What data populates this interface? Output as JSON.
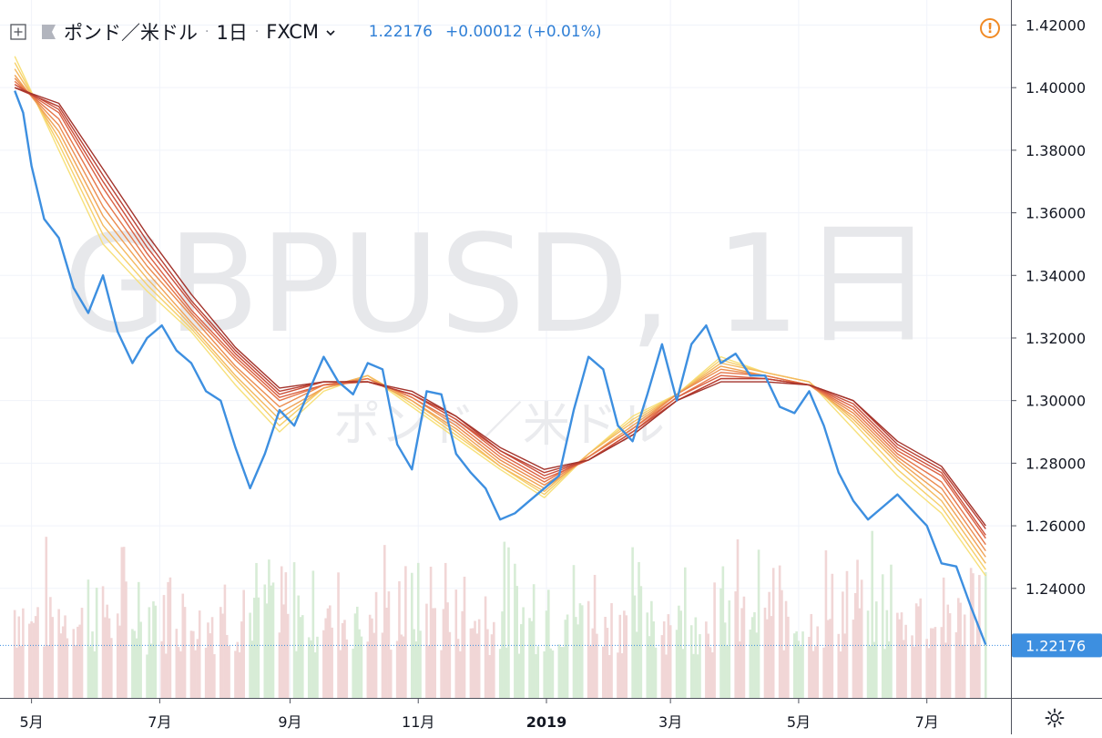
{
  "header": {
    "symbol_title": "ポンド／米ドル",
    "interval": "1日",
    "exchange": "FXCM",
    "last_price": "1.22176",
    "change": "+0.00012 (+0.01%)",
    "add_icon": "plus-square-icon",
    "flag_icon": "flag-icon",
    "dropdown_icon": "chevron-down-icon",
    "warning_icon": "warning-icon",
    "warning_glyph": "!",
    "settings_icon": "gear-icon"
  },
  "watermark": {
    "ticker": "GBPUSD, 1日",
    "name": "ポンド／米ドル"
  },
  "colors": {
    "price_line": "#3d8fe0",
    "ribbon": [
      "#f7e07a",
      "#f6cf6a",
      "#f4b95e",
      "#f0a255",
      "#eb8c4f",
      "#e57649",
      "#db6243",
      "#cc503b",
      "#b94033",
      "#a3332b"
    ],
    "volume_up": "#d7ecd6",
    "volume_down": "#f1d6d6",
    "axis_text": "#131722",
    "last_price_label_bg": "#3d8fe0"
  },
  "chart_data": {
    "type": "line",
    "title": "ポンド／米ドル · 1日 · FXCM",
    "x_tick_labels": [
      "5月",
      "7月",
      "9月",
      "11月",
      "2019",
      "3月",
      "5月",
      "7月"
    ],
    "y_tick_labels": [
      "1.42000",
      "1.40000",
      "1.38000",
      "1.36000",
      "1.34000",
      "1.32000",
      "1.30000",
      "1.28000",
      "1.26000",
      "1.24000"
    ],
    "ylim": [
      1.205,
      1.428
    ],
    "last_value_label": "1.22176",
    "grid": true,
    "series": [
      {
        "kind": "price",
        "x": [
          "2018-04-23",
          "2018-04-27",
          "2018-05-01",
          "2018-05-07",
          "2018-05-14",
          "2018-05-21",
          "2018-05-28",
          "2018-06-04",
          "2018-06-11",
          "2018-06-18",
          "2018-06-25",
          "2018-07-02",
          "2018-07-09",
          "2018-07-16",
          "2018-07-23",
          "2018-07-30",
          "2018-08-06",
          "2018-08-13",
          "2018-08-20",
          "2018-08-27",
          "2018-09-03",
          "2018-09-10",
          "2018-09-17",
          "2018-09-24",
          "2018-10-01",
          "2018-10-08",
          "2018-10-15",
          "2018-10-22",
          "2018-10-29",
          "2018-11-05",
          "2018-11-12",
          "2018-11-19",
          "2018-11-26",
          "2018-12-03",
          "2018-12-10",
          "2018-12-17",
          "2018-12-24",
          "2018-12-31",
          "2019-01-07",
          "2019-01-14",
          "2019-01-21",
          "2019-01-28",
          "2019-02-04",
          "2019-02-11",
          "2019-02-18",
          "2019-02-25",
          "2019-03-04",
          "2019-03-11",
          "2019-03-18",
          "2019-03-25",
          "2019-04-01",
          "2019-04-08",
          "2019-04-15",
          "2019-04-22",
          "2019-04-29",
          "2019-05-06",
          "2019-05-13",
          "2019-05-20",
          "2019-05-27",
          "2019-06-03",
          "2019-06-10",
          "2019-06-17",
          "2019-06-24",
          "2019-07-01",
          "2019-07-08",
          "2019-07-15",
          "2019-07-22",
          "2019-07-29"
        ],
        "y": [
          1.399,
          1.392,
          1.375,
          1.358,
          1.352,
          1.336,
          1.328,
          1.34,
          1.322,
          1.312,
          1.32,
          1.324,
          1.316,
          1.312,
          1.303,
          1.3,
          1.285,
          1.272,
          1.283,
          1.297,
          1.292,
          1.303,
          1.314,
          1.306,
          1.302,
          1.312,
          1.31,
          1.286,
          1.278,
          1.303,
          1.302,
          1.283,
          1.277,
          1.272,
          1.262,
          1.264,
          1.268,
          1.272,
          1.276,
          1.297,
          1.314,
          1.31,
          1.292,
          1.287,
          1.302,
          1.318,
          1.3,
          1.318,
          1.324,
          1.312,
          1.315,
          1.308,
          1.308,
          1.298,
          1.296,
          1.303,
          1.292,
          1.277,
          1.268,
          1.262,
          1.266,
          1.27,
          1.265,
          1.26,
          1.248,
          1.247,
          1.234,
          1.222
        ]
      },
      {
        "kind": "moving-average-ribbon",
        "x": [
          "2018-04-23",
          "2018-05-14",
          "2018-06-04",
          "2018-06-25",
          "2018-07-16",
          "2018-08-06",
          "2018-08-27",
          "2018-09-17",
          "2018-10-08",
          "2018-10-29",
          "2018-11-19",
          "2018-12-10",
          "2018-12-31",
          "2019-01-21",
          "2019-02-11",
          "2019-03-04",
          "2019-03-25",
          "2019-04-15",
          "2019-05-06",
          "2019-05-27",
          "2019-06-17",
          "2019-07-08",
          "2019-07-29"
        ],
        "lines": [
          [
            1.41,
            1.38,
            1.35,
            1.335,
            1.322,
            1.305,
            1.29,
            1.303,
            1.308,
            1.298,
            1.288,
            1.278,
            1.269,
            1.283,
            1.295,
            1.302,
            1.314,
            1.309,
            1.306,
            1.291,
            1.276,
            1.264,
            1.244
          ],
          [
            1.408,
            1.382,
            1.353,
            1.337,
            1.323,
            1.307,
            1.292,
            1.304,
            1.308,
            1.299,
            1.289,
            1.279,
            1.27,
            1.283,
            1.294,
            1.302,
            1.313,
            1.309,
            1.306,
            1.293,
            1.278,
            1.266,
            1.246
          ],
          [
            1.406,
            1.384,
            1.356,
            1.339,
            1.324,
            1.308,
            1.294,
            1.304,
            1.308,
            1.3,
            1.29,
            1.279,
            1.271,
            1.283,
            1.293,
            1.302,
            1.312,
            1.309,
            1.306,
            1.294,
            1.28,
            1.268,
            1.248
          ],
          [
            1.404,
            1.386,
            1.359,
            1.341,
            1.325,
            1.31,
            1.296,
            1.304,
            1.307,
            1.3,
            1.291,
            1.28,
            1.272,
            1.282,
            1.292,
            1.302,
            1.311,
            1.308,
            1.305,
            1.295,
            1.281,
            1.27,
            1.25
          ],
          [
            1.403,
            1.388,
            1.362,
            1.343,
            1.327,
            1.311,
            1.298,
            1.305,
            1.307,
            1.301,
            1.292,
            1.281,
            1.273,
            1.282,
            1.291,
            1.302,
            1.31,
            1.308,
            1.305,
            1.296,
            1.282,
            1.272,
            1.252
          ],
          [
            1.402,
            1.39,
            1.365,
            1.345,
            1.328,
            1.313,
            1.3,
            1.305,
            1.307,
            1.301,
            1.293,
            1.282,
            1.274,
            1.282,
            1.291,
            1.301,
            1.309,
            1.308,
            1.305,
            1.297,
            1.283,
            1.274,
            1.254
          ],
          [
            1.401,
            1.392,
            1.368,
            1.347,
            1.329,
            1.314,
            1.301,
            1.305,
            1.306,
            1.302,
            1.294,
            1.283,
            1.275,
            1.281,
            1.29,
            1.301,
            1.308,
            1.307,
            1.305,
            1.298,
            1.284,
            1.276,
            1.256
          ],
          [
            1.401,
            1.393,
            1.37,
            1.349,
            1.331,
            1.315,
            1.302,
            1.306,
            1.306,
            1.302,
            1.294,
            1.284,
            1.276,
            1.281,
            1.29,
            1.3,
            1.307,
            1.307,
            1.305,
            1.299,
            1.285,
            1.277,
            1.257
          ],
          [
            1.4,
            1.394,
            1.372,
            1.351,
            1.332,
            1.316,
            1.303,
            1.306,
            1.306,
            1.302,
            1.295,
            1.284,
            1.277,
            1.281,
            1.289,
            1.3,
            1.307,
            1.307,
            1.305,
            1.3,
            1.286,
            1.278,
            1.259
          ],
          [
            1.4,
            1.395,
            1.374,
            1.353,
            1.334,
            1.317,
            1.304,
            1.306,
            1.306,
            1.303,
            1.295,
            1.285,
            1.278,
            1.281,
            1.289,
            1.3,
            1.306,
            1.306,
            1.305,
            1.3,
            1.287,
            1.279,
            1.26
          ]
        ]
      }
    ],
    "volume": {
      "x_range": [
        "2018-04-23",
        "2019-07-29"
      ],
      "relative_height_min": 0.25,
      "relative_height_max": 1.0
    }
  }
}
